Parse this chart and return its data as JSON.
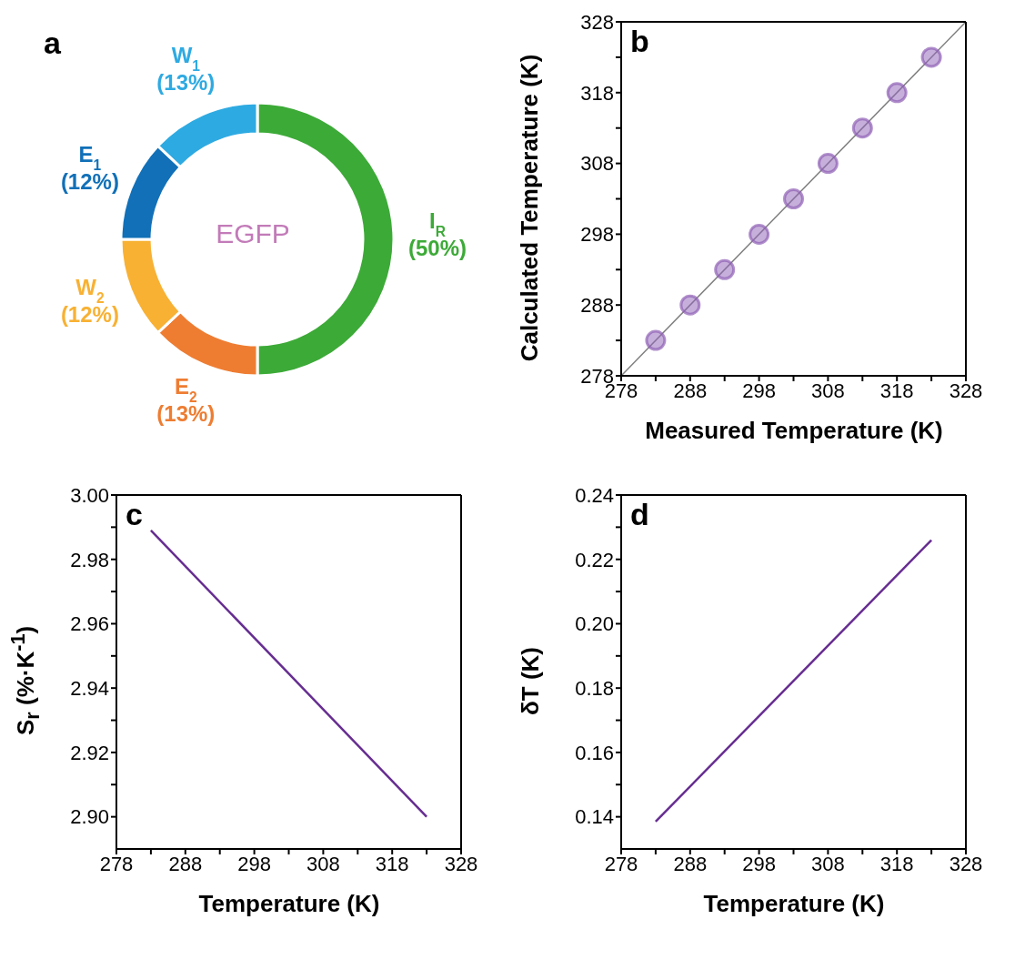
{
  "chart_data": [
    {
      "type": "donut",
      "title": "a",
      "categories": [
        "I$_{R}$",
        "E$_{2}$",
        "W$_{2}$",
        "E$_{1}$",
        "W$_{1}$"
      ],
      "values": [
        50,
        13,
        12,
        12,
        13
      ],
      "value_labels": [
        "(50%)",
        "(13%)",
        "(12%)",
        "(12%)",
        "(13%)"
      ],
      "colors": [
        "#3caa37",
        "#ee7d32",
        "#f8b133",
        "#1170b8",
        "#2eaae2"
      ],
      "annotations": [
        "EGFP"
      ]
    },
    {
      "type": "scatter",
      "title": "b",
      "xlabel": "Measured Temperature (K)",
      "ylabel": "Calculated Temperature (K)",
      "xlim": [
        278,
        328
      ],
      "ylim": [
        278,
        328
      ],
      "xticks": [
        278,
        {
          "value": 283,
          "label": null
        },
        288,
        {
          "value": 293,
          "label": null
        },
        298,
        {
          "value": 303,
          "label": null
        },
        308,
        {
          "value": 313,
          "label": null
        },
        318,
        {
          "value": 323,
          "label": null
        },
        328
      ],
      "yticks": [
        278,
        {
          "value": 283,
          "label": null
        },
        288,
        {
          "value": 293,
          "label": null
        },
        298,
        {
          "value": 303,
          "label": null
        },
        308,
        {
          "value": 313,
          "label": null
        },
        318,
        {
          "value": 323,
          "label": null
        },
        328
      ],
      "series": [
        {
          "type": "scatter",
          "marker": "circle",
          "color": "#8e5fb5",
          "x": [
            283,
            288,
            293,
            298,
            303,
            308,
            313,
            318,
            323
          ],
          "values": [
            283,
            288,
            293,
            298,
            303,
            308,
            313,
            318,
            323
          ]
        },
        {
          "type": "line",
          "color": "#808080",
          "x": [
            278,
            328
          ],
          "values": [
            278,
            328
          ]
        }
      ]
    },
    {
      "type": "line",
      "title": "c",
      "xlabel": "Temperature (K)",
      "ylabel": "S$_{r}$ (%·K$^{-1}$)",
      "xlim": [
        278,
        328
      ],
      "ylim": [
        2.89,
        3.0
      ],
      "xticks": [
        278,
        {
          "value": 283,
          "label": null
        },
        288,
        {
          "value": 293,
          "label": null
        },
        298,
        {
          "value": 303,
          "label": null
        },
        308,
        {
          "value": 313,
          "label": null
        },
        318,
        {
          "value": 323,
          "label": null
        },
        328
      ],
      "yticks": [
        {
          "value": 2.9,
          "label": "2.90"
        },
        {
          "value": 2.91,
          "label": null
        },
        {
          "value": 2.92,
          "label": "2.92"
        },
        {
          "value": 2.93,
          "label": null
        },
        {
          "value": 2.94,
          "label": "2.94"
        },
        {
          "value": 2.95,
          "label": null
        },
        {
          "value": 2.96,
          "label": "2.96"
        },
        {
          "value": 2.97,
          "label": null
        },
        {
          "value": 2.98,
          "label": "2.98"
        },
        {
          "value": 2.99,
          "label": null
        },
        {
          "value": 3.0,
          "label": "3.00"
        }
      ],
      "series": [
        {
          "color": "#662d91",
          "x": [
            283,
            323
          ],
          "values": [
            2.989,
            2.9
          ]
        }
      ]
    },
    {
      "type": "line",
      "title": "d",
      "xlabel": "Temperature (K)",
      "ylabel": "δT (K)",
      "xlim": [
        278,
        328
      ],
      "ylim": [
        0.13,
        0.24
      ],
      "xticks": [
        278,
        {
          "value": 283,
          "label": null
        },
        288,
        {
          "value": 293,
          "label": null
        },
        298,
        {
          "value": 303,
          "label": null
        },
        308,
        {
          "value": 313,
          "label": null
        },
        318,
        {
          "value": 323,
          "label": null
        },
        328
      ],
      "yticks": [
        {
          "value": 0.14,
          "label": "0.14"
        },
        {
          "value": 0.15,
          "label": null
        },
        {
          "value": 0.16,
          "label": "0.16"
        },
        {
          "value": 0.17,
          "label": null
        },
        {
          "value": 0.18,
          "label": "0.18"
        },
        {
          "value": 0.19,
          "label": null
        },
        {
          "value": 0.2,
          "label": "0.20"
        },
        {
          "value": 0.21,
          "label": null
        },
        {
          "value": 0.22,
          "label": "0.22"
        },
        {
          "value": 0.23,
          "label": null
        },
        {
          "value": 0.24,
          "label": "0.24"
        }
      ],
      "series": [
        {
          "color": "#662d91",
          "x": [
            283,
            323
          ],
          "values": [
            0.1385,
            0.226
          ]
        }
      ]
    }
  ]
}
